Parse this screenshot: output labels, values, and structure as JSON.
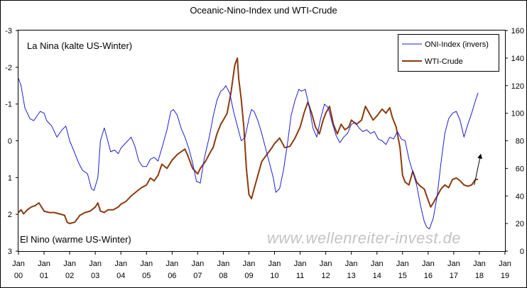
{
  "chart_data": {
    "type": "line",
    "title": "Oceanic-Nino-Index und WTI-Crude",
    "annotations": {
      "top_left": "La Nina (kalte US-Winter)",
      "bottom_left": "El Nino (warme US-Winter)",
      "watermark": "www.wellenreiter-invest.de"
    },
    "x_axis": {
      "range": [
        2000.0,
        2019.0
      ],
      "ticks": [
        {
          "x": 2000,
          "top": "Jan",
          "bottom": "00"
        },
        {
          "x": 2001,
          "top": "Jan",
          "bottom": "01"
        },
        {
          "x": 2002,
          "top": "Jan",
          "bottom": "02"
        },
        {
          "x": 2003,
          "top": "Jan",
          "bottom": "03"
        },
        {
          "x": 2004,
          "top": "Jan",
          "bottom": "04"
        },
        {
          "x": 2005,
          "top": "Jan",
          "bottom": "05"
        },
        {
          "x": 2006,
          "top": "Jan",
          "bottom": "06"
        },
        {
          "x": 2007,
          "top": "Jan",
          "bottom": "07"
        },
        {
          "x": 2008,
          "top": "Jan",
          "bottom": "08"
        },
        {
          "x": 2009,
          "top": "Jan",
          "bottom": "09"
        },
        {
          "x": 2010,
          "top": "Jan",
          "bottom": "10"
        },
        {
          "x": 2011,
          "top": "Jan",
          "bottom": "11"
        },
        {
          "x": 2012,
          "top": "Jan",
          "bottom": "12"
        },
        {
          "x": 2013,
          "top": "Jan",
          "bottom": "13"
        },
        {
          "x": 2014,
          "top": "Jan",
          "bottom": "14"
        },
        {
          "x": 2015,
          "top": "Jan",
          "bottom": "15"
        },
        {
          "x": 2016,
          "top": "Jan",
          "bottom": "16"
        },
        {
          "x": 2017,
          "top": "Jan",
          "bottom": "17"
        },
        {
          "x": 2018,
          "top": "Jan",
          "bottom": "18"
        },
        {
          "x": 2019,
          "top": "Jan",
          "bottom": "19"
        }
      ]
    },
    "y_left": {
      "range": [
        -3,
        3
      ],
      "inverted": true,
      "tick_values": [
        -3,
        -2,
        -1,
        0,
        1,
        2,
        3
      ],
      "tick_labels": [
        "-3",
        "-2",
        "-1",
        "0",
        "1",
        "2",
        "3"
      ]
    },
    "y_right": {
      "range": [
        0,
        160
      ],
      "tick_values": [
        0,
        20,
        40,
        60,
        80,
        100,
        120,
        140,
        160
      ],
      "tick_labels": [
        "0",
        "20",
        "40",
        "60",
        "80",
        "100",
        "120",
        "140",
        "160"
      ]
    },
    "grid": false,
    "legend": {
      "placement": "top-right",
      "entries": [
        {
          "name": "ONI-Index (invers)",
          "color": "#1f1fd0"
        },
        {
          "name": "WTI-Crude",
          "color": "#8b3a0e"
        }
      ]
    },
    "series": [
      {
        "name": "ONI-Index (invers)",
        "axis": "left",
        "color": "#1f1fd0",
        "x": [
          2000.0,
          2000.1,
          2000.25,
          2000.45,
          2000.6,
          2000.85,
          2001.0,
          2001.1,
          2001.3,
          2001.5,
          2001.7,
          2001.85,
          2002.0,
          2002.15,
          2002.35,
          2002.5,
          2002.7,
          2002.85,
          2002.95,
          2003.1,
          2003.2,
          2003.35,
          2003.45,
          2003.6,
          2003.75,
          2003.9,
          2004.0,
          2004.2,
          2004.4,
          2004.55,
          2004.7,
          2004.85,
          2005.0,
          2005.15,
          2005.3,
          2005.45,
          2005.6,
          2005.8,
          2005.95,
          2006.05,
          2006.2,
          2006.35,
          2006.5,
          2006.65,
          2006.8,
          2006.95,
          2007.1,
          2007.25,
          2007.45,
          2007.6,
          2007.75,
          2007.9,
          2008.0,
          2008.1,
          2008.25,
          2008.4,
          2008.55,
          2008.7,
          2008.85,
          2009.0,
          2009.1,
          2009.2,
          2009.35,
          2009.5,
          2009.65,
          2009.8,
          2009.95,
          2010.05,
          2010.2,
          2010.35,
          2010.5,
          2010.65,
          2010.8,
          2010.95,
          2011.05,
          2011.2,
          2011.35,
          2011.5,
          2011.65,
          2011.8,
          2011.95,
          2012.1,
          2012.25,
          2012.4,
          2012.55,
          2012.7,
          2012.85,
          2013.0,
          2013.15,
          2013.3,
          2013.45,
          2013.6,
          2013.75,
          2013.9,
          2014.05,
          2014.2,
          2014.35,
          2014.5,
          2014.65,
          2014.8,
          2014.95,
          2015.1,
          2015.25,
          2015.4,
          2015.55,
          2015.7,
          2015.85,
          2015.95,
          2016.05,
          2016.2,
          2016.35,
          2016.5,
          2016.65,
          2016.8,
          2016.95,
          2017.1,
          2017.25,
          2017.4,
          2017.55,
          2017.7,
          2017.85,
          2017.95
        ],
        "values": [
          -1.7,
          -1.5,
          -0.9,
          -0.6,
          -0.55,
          -0.8,
          -0.75,
          -0.55,
          -0.4,
          -0.1,
          -0.3,
          -0.4,
          0.0,
          0.25,
          0.6,
          0.8,
          0.9,
          1.3,
          1.35,
          1.0,
          0.0,
          -0.35,
          -0.1,
          0.3,
          0.25,
          0.35,
          0.2,
          0.05,
          -0.1,
          0.15,
          0.55,
          0.7,
          0.7,
          0.5,
          0.45,
          0.55,
          0.2,
          -0.3,
          -0.8,
          -0.85,
          -0.7,
          -0.35,
          -0.1,
          0.2,
          0.6,
          1.1,
          1.15,
          0.5,
          -0.1,
          -0.65,
          -1.1,
          -1.35,
          -1.4,
          -1.5,
          -1.3,
          -0.8,
          -0.4,
          0.0,
          -0.1,
          -0.6,
          -0.85,
          -0.8,
          -0.55,
          -0.2,
          0.2,
          0.6,
          1.0,
          1.4,
          1.3,
          0.8,
          0.1,
          -0.7,
          -1.1,
          -1.4,
          -1.35,
          -1.4,
          -0.95,
          -0.35,
          -0.1,
          -0.6,
          -1.0,
          -0.9,
          -0.5,
          -0.15,
          0.05,
          -0.1,
          -0.2,
          -0.45,
          -0.5,
          -0.35,
          -0.25,
          -0.3,
          -0.2,
          -0.25,
          -0.05,
          0.0,
          0.1,
          -0.1,
          -0.05,
          -0.25,
          -0.05,
          0.0,
          0.5,
          0.85,
          1.2,
          1.75,
          2.2,
          2.35,
          2.4,
          2.1,
          1.5,
          0.6,
          -0.2,
          -0.6,
          -0.75,
          -0.8,
          -0.55,
          -0.1,
          -0.45,
          -0.75,
          -1.1,
          -1.3
        ]
      },
      {
        "name": "WTI-Crude",
        "axis": "right",
        "color": "#8b3a0e",
        "x": [
          2000.0,
          2000.1,
          2000.2,
          2000.35,
          2000.5,
          2000.65,
          2000.8,
          2001.0,
          2001.2,
          2001.4,
          2001.6,
          2001.8,
          2001.9,
          2002.0,
          2002.2,
          2002.4,
          2002.6,
          2002.8,
          2003.0,
          2003.1,
          2003.2,
          2003.35,
          2003.5,
          2003.7,
          2003.9,
          2004.0,
          2004.2,
          2004.4,
          2004.6,
          2004.8,
          2005.0,
          2005.15,
          2005.3,
          2005.45,
          2005.6,
          2005.8,
          2006.0,
          2006.2,
          2006.35,
          2006.5,
          2006.6,
          2006.8,
          2007.0,
          2007.1,
          2007.3,
          2007.5,
          2007.6,
          2007.75,
          2007.9,
          2008.0,
          2008.15,
          2008.3,
          2008.45,
          2008.55,
          2008.6,
          2008.7,
          2008.8,
          2008.9,
          2009.0,
          2009.1,
          2009.2,
          2009.35,
          2009.5,
          2009.7,
          2009.9,
          2010.0,
          2010.2,
          2010.4,
          2010.6,
          2010.8,
          2011.0,
          2011.15,
          2011.3,
          2011.45,
          2011.6,
          2011.75,
          2011.9,
          2012.0,
          2012.15,
          2012.3,
          2012.45,
          2012.6,
          2012.75,
          2012.9,
          2013.0,
          2013.2,
          2013.4,
          2013.55,
          2013.7,
          2013.85,
          2014.0,
          2014.2,
          2014.35,
          2014.5,
          2014.6,
          2014.75,
          2014.9,
          2015.0,
          2015.1,
          2015.25,
          2015.4,
          2015.55,
          2015.7,
          2015.85,
          2016.0,
          2016.1,
          2016.2,
          2016.35,
          2016.5,
          2016.65,
          2016.8,
          2016.95,
          2017.1,
          2017.25,
          2017.4,
          2017.55,
          2017.7,
          2017.85,
          2017.95
        ],
        "values": [
          28,
          30,
          27,
          30,
          32,
          33,
          35,
          29,
          28,
          28,
          27,
          26,
          21,
          20,
          21,
          26,
          28,
          29,
          32,
          35,
          29,
          28,
          30,
          30,
          32,
          34,
          36,
          40,
          43,
          46,
          48,
          53,
          51,
          55,
          63,
          60,
          66,
          70,
          72,
          74,
          70,
          60,
          56,
          60,
          65,
          72,
          75,
          85,
          92,
          95,
          100,
          115,
          135,
          140,
          125,
          110,
          90,
          60,
          41,
          38,
          45,
          55,
          65,
          70,
          75,
          78,
          82,
          75,
          76,
          82,
          90,
          100,
          108,
          100,
          90,
          85,
          95,
          100,
          105,
          92,
          85,
          92,
          88,
          90,
          95,
          92,
          95,
          105,
          100,
          95,
          98,
          103,
          100,
          104,
          97,
          90,
          75,
          55,
          50,
          48,
          58,
          50,
          47,
          45,
          37,
          32,
          35,
          40,
          45,
          48,
          46,
          52,
          53,
          51,
          48,
          47,
          48,
          52,
          52
        ],
        "arrow": {
          "from": [
            2017.8,
            48
          ],
          "to": [
            2018.05,
            70
          ]
        }
      }
    ]
  }
}
